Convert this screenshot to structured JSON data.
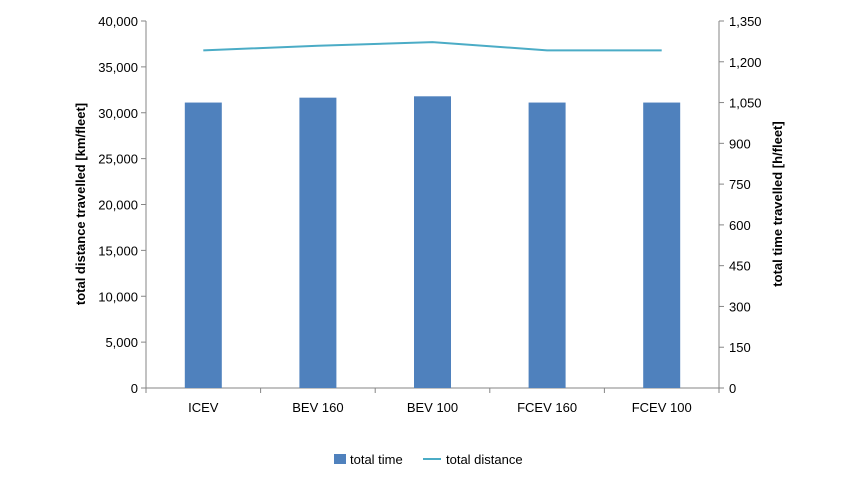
{
  "chart_data": {
    "type": "bar",
    "categories": [
      "ICEV",
      "BEV 160",
      "BEV 100",
      "FCEV 160",
      "FCEV 100"
    ],
    "series": [
      {
        "name": "total time",
        "kind": "bar",
        "axis": "right",
        "color": "#4f81bd",
        "values": [
          1050,
          1068,
          1073,
          1050,
          1050
        ]
      },
      {
        "name": "total distance",
        "kind": "line",
        "axis": "left",
        "color": "#4bacc6",
        "values": [
          36800,
          37300,
          37700,
          36800,
          36800
        ]
      }
    ],
    "ylabel_left": "total distance travelled [km/fleet]",
    "ylabel_right": "total time travelled [h/fleet]",
    "ylim_left": [
      0,
      40000
    ],
    "ylim_right": [
      0,
      1350
    ],
    "yticks_left": [
      "0",
      "5,000",
      "10,000",
      "15,000",
      "20,000",
      "25,000",
      "30,000",
      "35,000",
      "40,000"
    ],
    "yticks_right": [
      "0",
      "150",
      "300",
      "450",
      "600",
      "750",
      "900",
      "1,050",
      "1,200",
      "1,350"
    ],
    "grid": false,
    "legend_position": "bottom"
  }
}
